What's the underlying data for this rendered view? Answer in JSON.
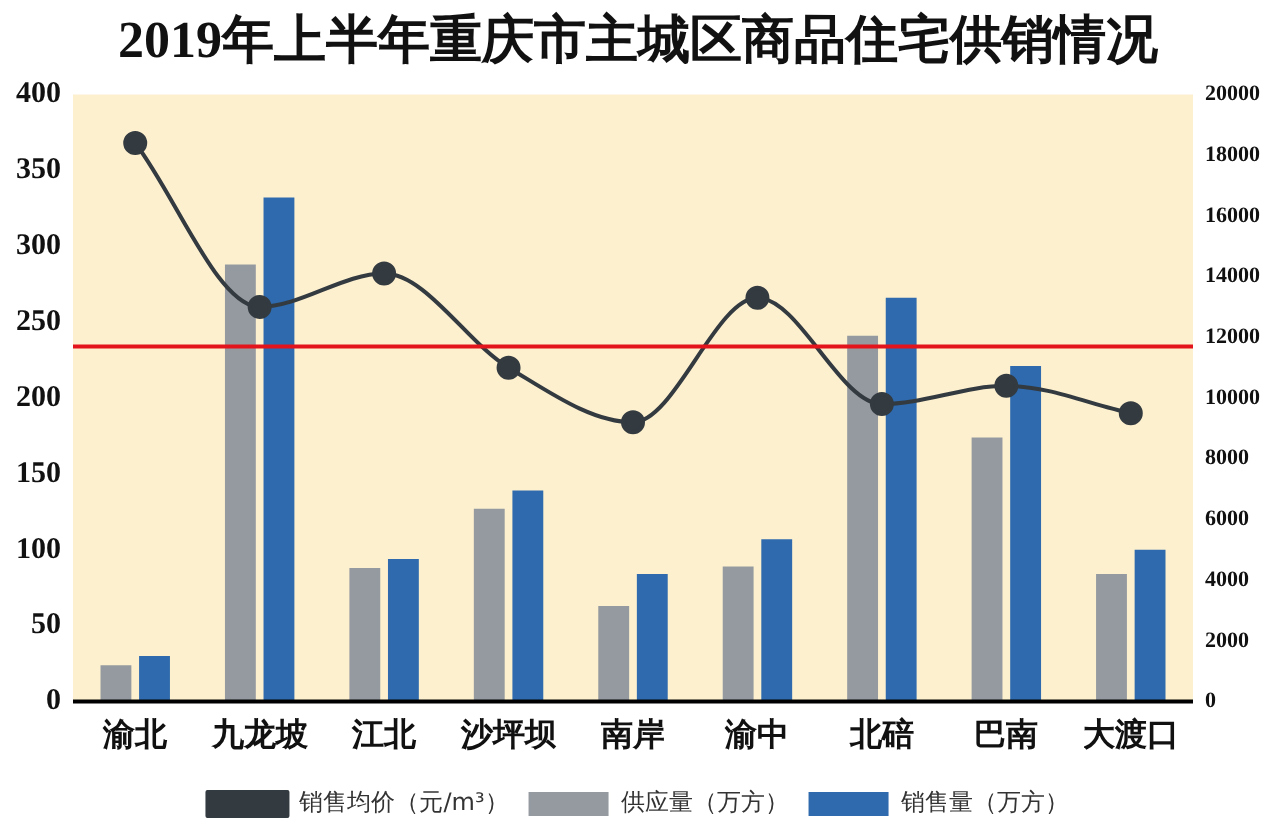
{
  "chart_data": {
    "type": "bar",
    "title": "2019年上半年重庆市主城区商品住宅供销情况",
    "categories": [
      "渝北",
      "九龙坡",
      "江北",
      "沙坪坝",
      "南岸",
      "渝中",
      "北碚",
      "巴南",
      "大渡口"
    ],
    "series": [
      {
        "name": "供应量（万方）",
        "color": "#959aa0",
        "values": [
          24,
          288,
          88,
          127,
          63,
          89,
          241,
          174,
          84
        ]
      },
      {
        "name": "销售量（万方）",
        "color": "#2e6aad",
        "values": [
          30,
          332,
          94,
          139,
          84,
          107,
          266,
          221,
          100
        ]
      },
      {
        "name": "销售均价（元/m³）",
        "type": "line",
        "axis": "y2",
        "color": "#333a40",
        "marker": "circle",
        "values": [
          18400,
          13000,
          14100,
          11000,
          9200,
          13300,
          9800,
          10400,
          9500
        ]
      }
    ],
    "ylim": [
      0,
      400
    ],
    "yticks": [
      0,
      50,
      100,
      150,
      200,
      250,
      300,
      350,
      400
    ],
    "y2lim": [
      0,
      20000
    ],
    "y2ticks": [
      0,
      2000,
      4000,
      6000,
      8000,
      10000,
      12000,
      14000,
      16000,
      18000,
      20000
    ],
    "ref_lines": [
      {
        "axis": "y2",
        "value": 11700,
        "color": "#e3141b"
      }
    ],
    "grid": false,
    "legend": "bottom"
  }
}
